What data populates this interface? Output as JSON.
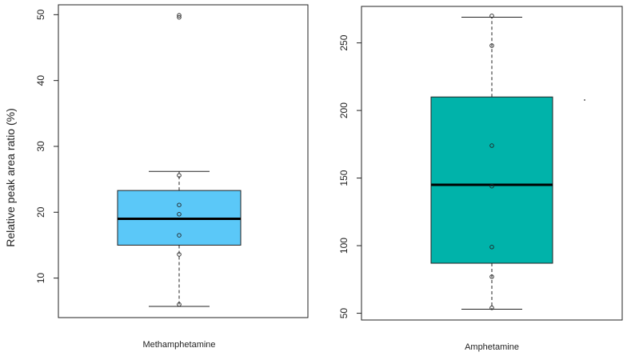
{
  "chart_data": [
    {
      "type": "box",
      "category": "Methamphetamine",
      "ylabel": "Relative peak area ratio (%)",
      "ylim": [
        4,
        51.5
      ],
      "yticks": [
        10,
        20,
        30,
        40,
        50
      ],
      "box": {
        "whisker_low": 5.7,
        "q1": 15.0,
        "median": 19.0,
        "q3": 23.3,
        "whisker_high": 26.2
      },
      "points": [
        6.0,
        13.6,
        16.5,
        19.7,
        21.1,
        25.6,
        49.6,
        49.9
      ],
      "box_color": "#5BC8F8"
    },
    {
      "type": "box",
      "category": "Amphetamine",
      "ylabel": "",
      "ylim": [
        45,
        277
      ],
      "yticks": [
        50,
        100,
        150,
        200,
        250
      ],
      "box": {
        "whisker_low": 53,
        "q1": 87,
        "median": 145,
        "q3": 210,
        "whisker_high": 269
      },
      "points": [
        54,
        77,
        99,
        144,
        174,
        248,
        270
      ],
      "box_color": "#00B3AA"
    }
  ]
}
